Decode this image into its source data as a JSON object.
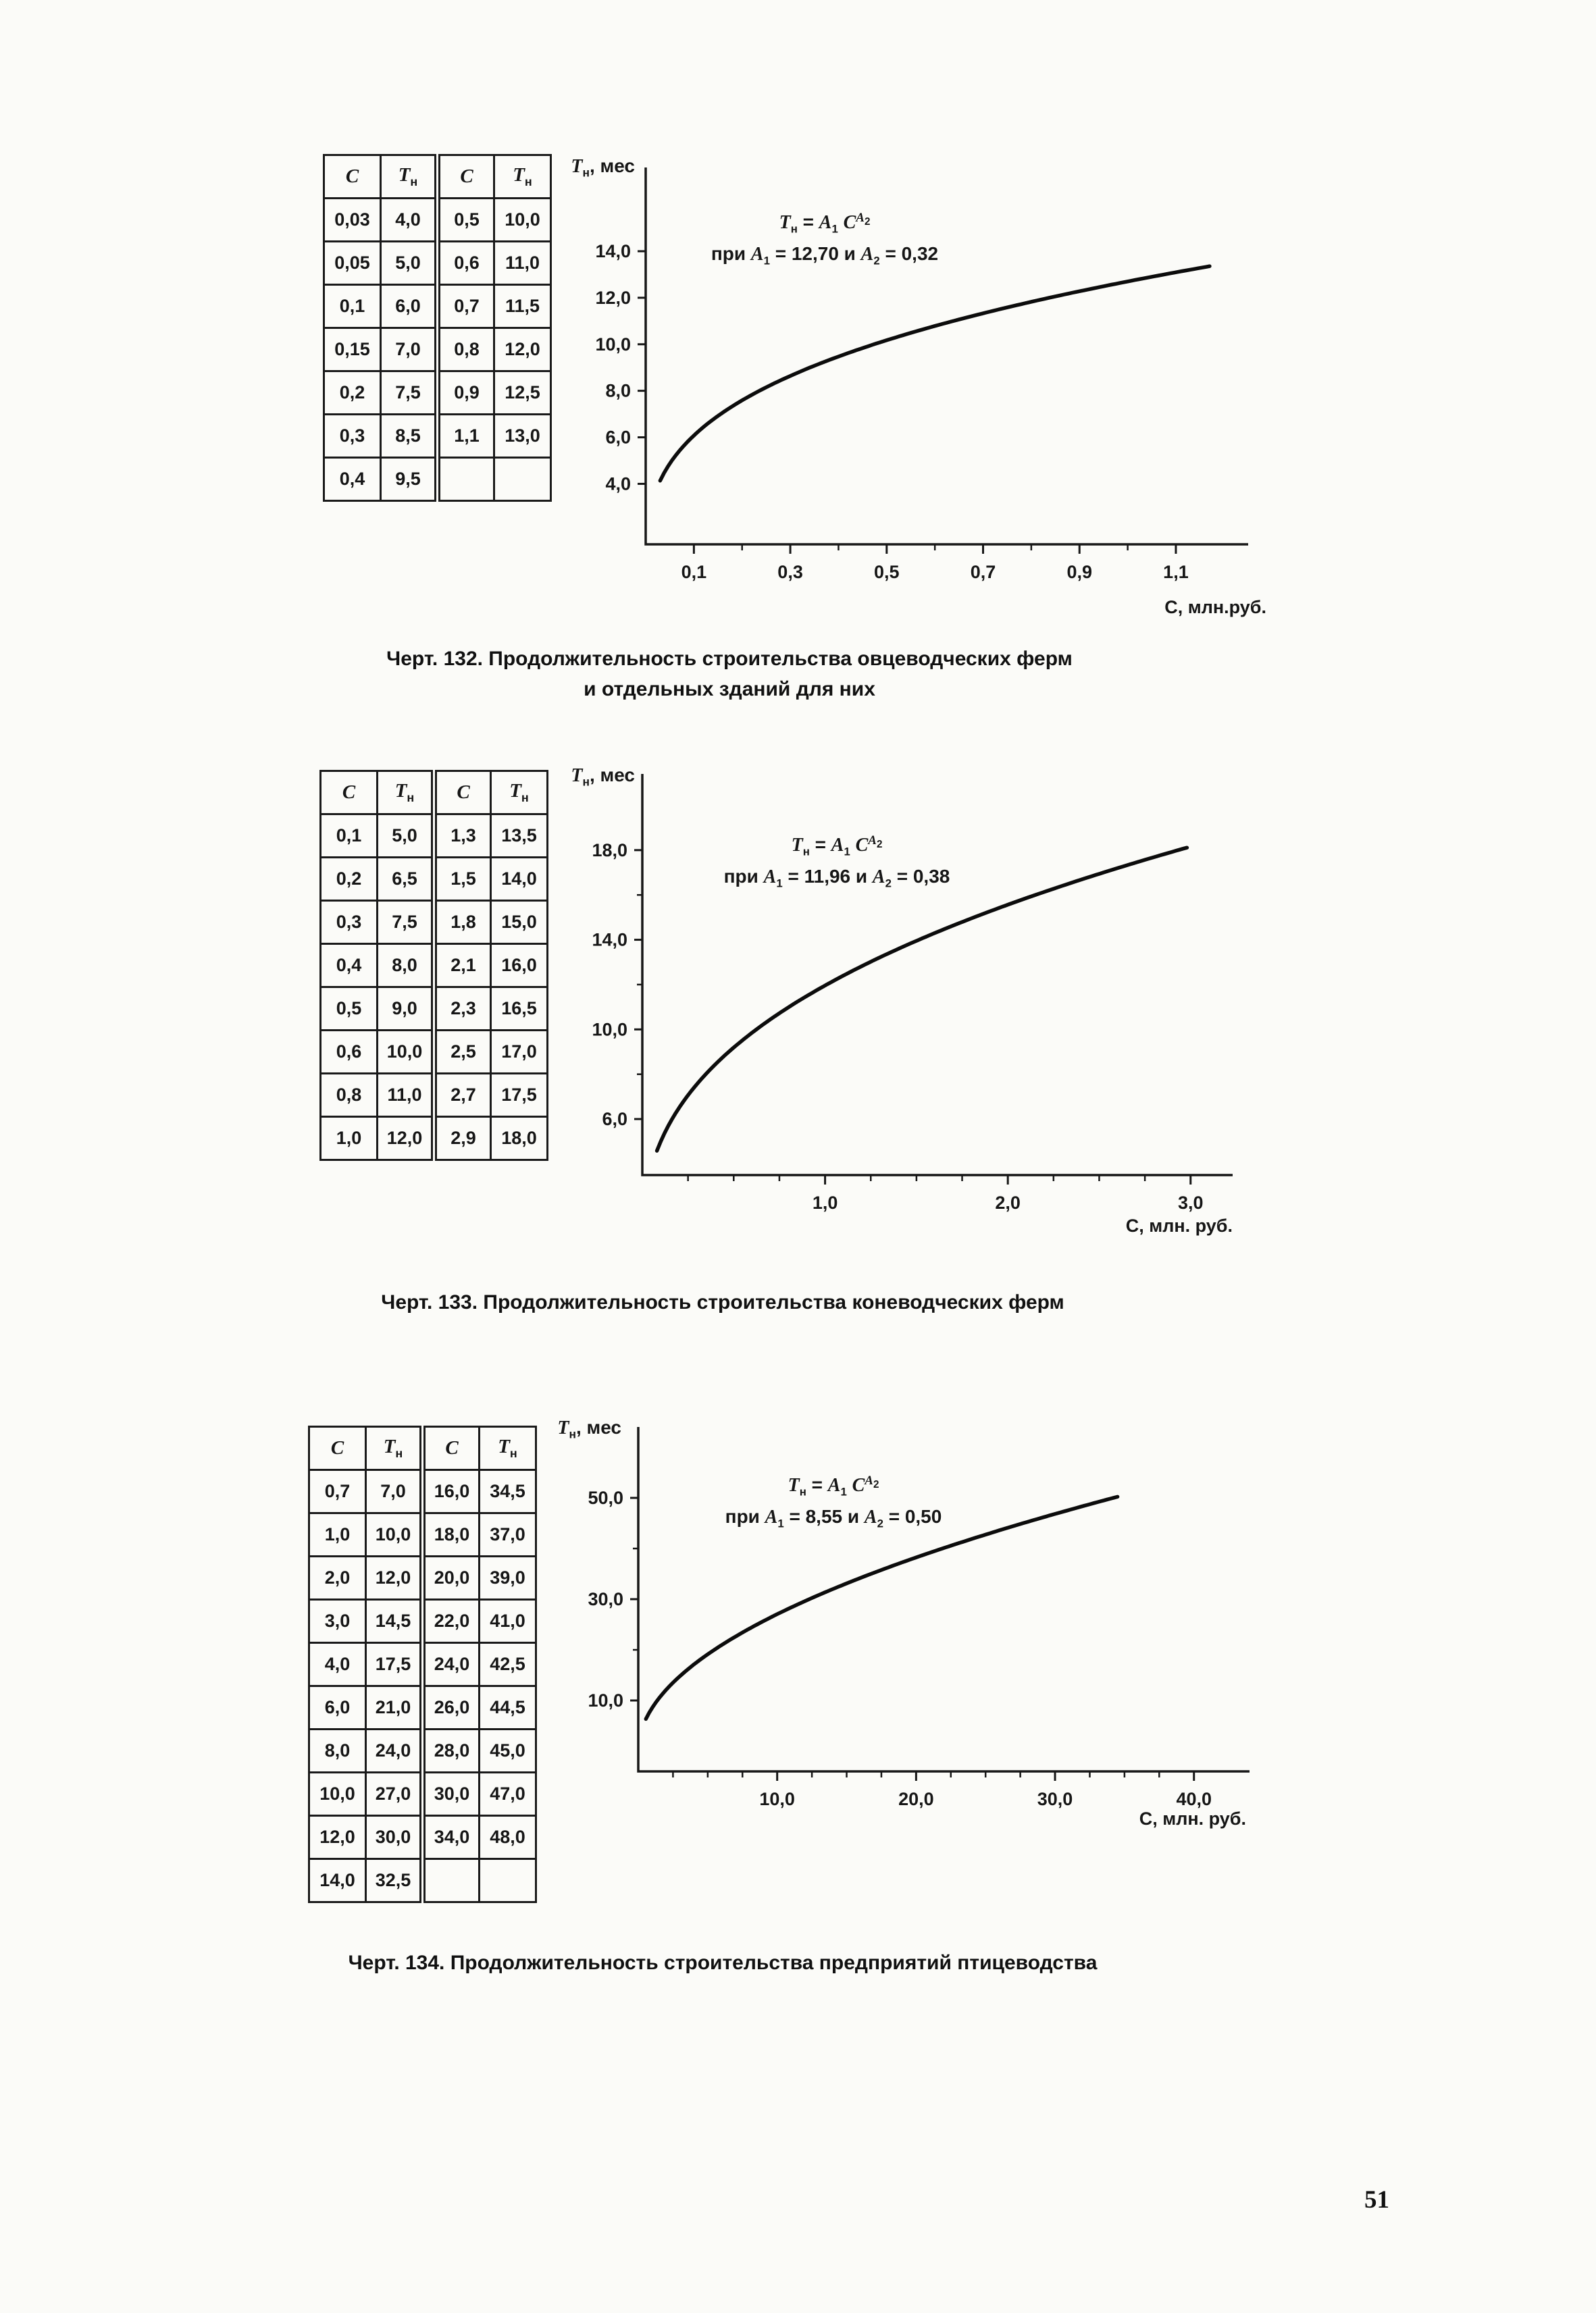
{
  "page": {
    "number": "51"
  },
  "figures": [
    {
      "table": {
        "headers_html": [
          "<i>С</i>",
          "<i>Т</i><sub>н</sub>",
          "<i>С</i>",
          "<i>Т</i><sub>н</sub>"
        ],
        "rows": [
          [
            "0,03",
            "4,0",
            "0,5",
            "10,0"
          ],
          [
            "0,05",
            "5,0",
            "0,6",
            "11,0"
          ],
          [
            "0,1",
            "6,0",
            "0,7",
            "11,5"
          ],
          [
            "0,15",
            "7,0",
            "0,8",
            "12,0"
          ],
          [
            "0,2",
            "7,5",
            "0,9",
            "12,5"
          ],
          [
            "0,3",
            "8,5",
            "1,1",
            "13,0"
          ],
          [
            "0,4",
            "9,5",
            "",
            ""
          ]
        ]
      },
      "formula_line1_html": "<i>Т</i><sub>н</sub> = <i>А</i><sub>1</sub> <i>С</i><sup><i>А</i><sub>2</sub></sup>",
      "formula_line2_html": "при <i>А</i><sub>1</sub> = 12,70 и <i>А</i><sub>2</sub> = 0,32",
      "y_axis_label_html": "<i>Т</i><sub>н</sub>, мес",
      "x_axis_label": "С, млн.руб.",
      "caption_lines": [
        "Черт. 132. Продолжительность строительства овцеводческих ферм",
        "и отдельных зданий для них"
      ]
    },
    {
      "table": {
        "headers_html": [
          "<i>С</i>",
          "<i>Т</i><sub>н</sub>",
          "<i>С</i>",
          "<i>Т</i><sub>н</sub>"
        ],
        "rows": [
          [
            "0,1",
            "5,0",
            "1,3",
            "13,5"
          ],
          [
            "0,2",
            "6,5",
            "1,5",
            "14,0"
          ],
          [
            "0,3",
            "7,5",
            "1,8",
            "15,0"
          ],
          [
            "0,4",
            "8,0",
            "2,1",
            "16,0"
          ],
          [
            "0,5",
            "9,0",
            "2,3",
            "16,5"
          ],
          [
            "0,6",
            "10,0",
            "2,5",
            "17,0"
          ],
          [
            "0,8",
            "11,0",
            "2,7",
            "17,5"
          ],
          [
            "1,0",
            "12,0",
            "2,9",
            "18,0"
          ]
        ]
      },
      "formula_line1_html": "<i>Т</i><sub>н</sub> = <i>А</i><sub>1</sub> <i>С</i><sup><i>А</i><sub>2</sub></sup>",
      "formula_line2_html": "при <i>А</i><sub>1</sub> = 11,96 и <i>А</i><sub>2</sub> = 0,38",
      "y_axis_label_html": "<i>Т</i><sub>н</sub>, мес",
      "x_axis_label": "С, млн. руб.",
      "caption_lines": [
        "Черт. 133. Продолжительность строительства коневодческих ферм"
      ]
    },
    {
      "table": {
        "headers_html": [
          "<i>С</i>",
          "<i>Т</i><sub>н</sub>",
          "<i>С</i>",
          "<i>Т</i><sub>н</sub>"
        ],
        "rows": [
          [
            "0,7",
            "7,0",
            "16,0",
            "34,5"
          ],
          [
            "1,0",
            "10,0",
            "18,0",
            "37,0"
          ],
          [
            "2,0",
            "12,0",
            "20,0",
            "39,0"
          ],
          [
            "3,0",
            "14,5",
            "22,0",
            "41,0"
          ],
          [
            "4,0",
            "17,5",
            "24,0",
            "42,5"
          ],
          [
            "6,0",
            "21,0",
            "26,0",
            "44,5"
          ],
          [
            "8,0",
            "24,0",
            "28,0",
            "45,0"
          ],
          [
            "10,0",
            "27,0",
            "30,0",
            "47,0"
          ],
          [
            "12,0",
            "30,0",
            "34,0",
            "48,0"
          ],
          [
            "14,0",
            "32,5",
            "",
            ""
          ]
        ]
      },
      "formula_line1_html": "<i>Т</i><sub>н</sub> = <i>А</i><sub>1</sub> <i>С</i><sup><i>А</i><sub>2</sub></sup>",
      "formula_line2_html": "при <i>А</i><sub>1</sub> = 8,55 и <i>А</i><sub>2</sub> = 0,50",
      "y_axis_label_html": "<i>Т</i><sub>н</sub>, мес",
      "x_axis_label": "С, млн. руб.",
      "caption_lines": [
        "Черт. 134. Продолжительность строительства предприятий птицеводства"
      ]
    }
  ],
  "chart_data": [
    {
      "type": "line",
      "figure": "Черт. 132",
      "title": "Продолжительность строительства овцеводческих ферм и отдельных зданий для них",
      "model": "Тн = А1·С^А2",
      "A1": 12.7,
      "A2": 0.32,
      "xlabel": "С, млн.руб.",
      "ylabel": "Тн, мес",
      "x_ticks": [
        "0,1",
        "0,3",
        "0,5",
        "0,7",
        "0,9",
        "1,1"
      ],
      "x_tick_values": [
        0.1,
        0.3,
        0.5,
        0.7,
        0.9,
        1.1
      ],
      "x_minor_ticks": [
        0.2,
        0.4,
        0.6,
        0.8,
        1.0
      ],
      "y_ticks": [
        "4,0",
        "6,0",
        "8,0",
        "10,0",
        "12,0",
        "14,0"
      ],
      "y_tick_values": [
        4,
        6,
        8,
        10,
        12,
        14
      ],
      "y_minor_ticks": [],
      "x_domain": [
        0,
        1.25
      ],
      "y_domain": [
        1.4,
        17.6
      ],
      "curve_x_range": [
        0.03,
        1.17
      ],
      "points": {
        "C": [
          0.03,
          0.05,
          0.1,
          0.15,
          0.2,
          0.3,
          0.4,
          0.5,
          0.6,
          0.7,
          0.8,
          0.9,
          1.1
        ],
        "T": [
          4.0,
          5.0,
          6.0,
          7.0,
          7.5,
          8.5,
          9.5,
          10.0,
          11.0,
          11.5,
          12.0,
          12.5,
          13.0
        ]
      }
    },
    {
      "type": "line",
      "figure": "Черт. 133",
      "title": "Продолжительность строительства коневодческих ферм",
      "model": "Тн = А1·С^А2",
      "A1": 11.96,
      "A2": 0.38,
      "xlabel": "С, млн. руб.",
      "ylabel": "Тн, мес",
      "x_ticks": [
        "1,0",
        "2,0",
        "3,0"
      ],
      "x_tick_values": [
        1,
        2,
        3
      ],
      "x_minor_ticks": [
        0.25,
        0.5,
        0.75,
        1.25,
        1.5,
        1.75,
        2.25,
        2.5,
        2.75
      ],
      "y_ticks": [
        "6,0",
        "10,0",
        "14,0",
        "18,0"
      ],
      "y_tick_values": [
        6,
        10,
        14,
        18
      ],
      "y_minor_ticks": [
        8,
        12,
        16
      ],
      "x_domain": [
        0,
        3.23
      ],
      "y_domain": [
        3.5,
        21.4
      ],
      "curve_x_range": [
        0.08,
        2.98
      ],
      "points": {
        "C": [
          0.1,
          0.2,
          0.3,
          0.4,
          0.5,
          0.6,
          0.8,
          1.0,
          1.3,
          1.5,
          1.8,
          2.1,
          2.3,
          2.5,
          2.7,
          2.9
        ],
        "T": [
          5.0,
          6.5,
          7.5,
          8.0,
          9.0,
          10.0,
          11.0,
          12.0,
          13.5,
          14.0,
          15.0,
          16.0,
          16.5,
          17.0,
          17.5,
          18.0
        ]
      }
    },
    {
      "type": "line",
      "figure": "Черт. 134",
      "title": "Продолжительность строительства предприятий птицеводства",
      "model": "Тн = А1·С^А2",
      "A1": 8.55,
      "A2": 0.5,
      "xlabel": "С, млн. руб.",
      "ylabel": "Тн, мес",
      "x_ticks": [
        "10,0",
        "20,0",
        "30,0",
        "40,0"
      ],
      "x_tick_values": [
        10,
        20,
        30,
        40
      ],
      "x_minor_ticks": [
        2.5,
        5,
        7.5,
        12.5,
        15,
        17.5,
        22.5,
        25,
        27.5,
        32.5,
        35,
        37.5
      ],
      "y_ticks": [
        "10,0",
        "30,0",
        "50,0"
      ],
      "y_tick_values": [
        10,
        30,
        50
      ],
      "y_minor_ticks": [
        20,
        40
      ],
      "x_domain": [
        0,
        44
      ],
      "y_domain": [
        -4,
        64
      ],
      "curve_x_range": [
        0.55,
        34.5
      ],
      "points": {
        "C": [
          0.7,
          1.0,
          2.0,
          3.0,
          4.0,
          6.0,
          8.0,
          10.0,
          12.0,
          14.0,
          16.0,
          18.0,
          20.0,
          22.0,
          24.0,
          26.0,
          28.0,
          30.0,
          34.0
        ],
        "T": [
          7.0,
          10.0,
          12.0,
          14.5,
          17.5,
          21.0,
          24.0,
          27.0,
          30.0,
          32.5,
          34.5,
          37.0,
          39.0,
          41.0,
          42.5,
          44.5,
          45.0,
          47.0,
          48.0
        ]
      }
    }
  ]
}
